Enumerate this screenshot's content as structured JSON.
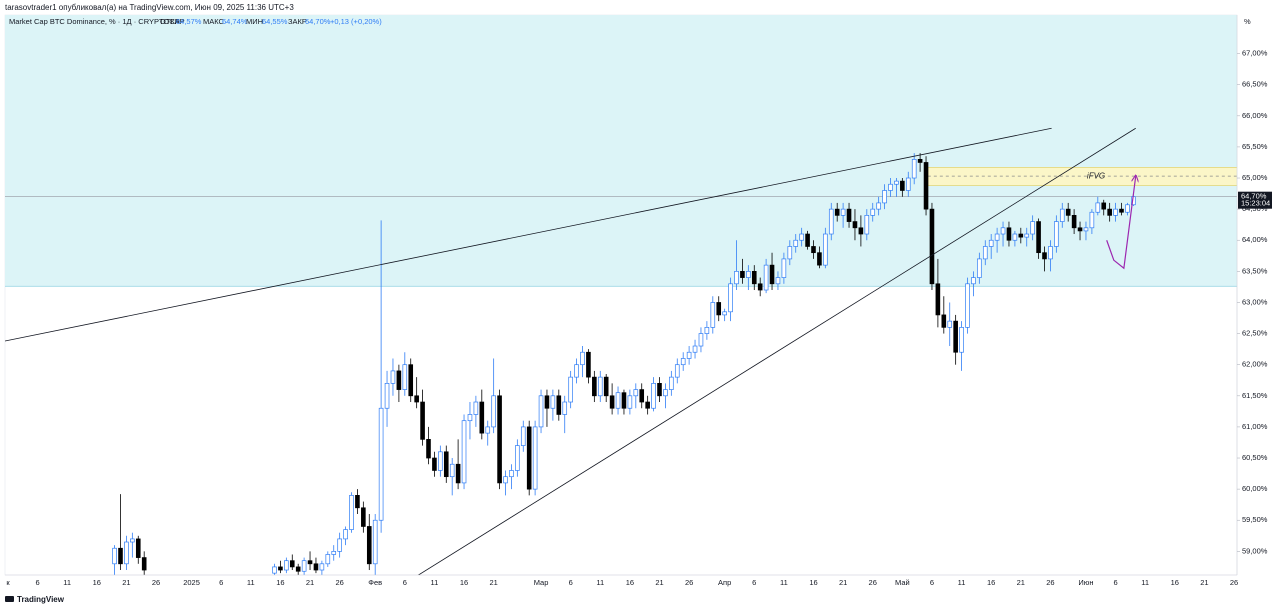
{
  "header": {
    "author_line": "tarasovtrader1 опубликовал(а) на TradingView.com, Июн 09, 2025 11:36 UTC+3",
    "brand": "TradingView"
  },
  "legend": {
    "symbol": "Market Cap BTC Dominance, % · 1Д · CRYPTOCAP",
    "open_label": "ОТКР",
    "open": "64,57%",
    "high_label": "МАКС",
    "high": "64,74%",
    "low_label": "МИН",
    "low": "64,55%",
    "close_label": "ЗАКР",
    "close": "64,70%",
    "change": "+0,13 (+0,20%)"
  },
  "chart_data": {
    "type": "candlestick",
    "axis_unit": "%",
    "up_color": "#2f7df6",
    "down_color": "#000000",
    "ylim": [
      58.62,
      67.62
    ],
    "yticks": [
      {
        "value": 59,
        "label": "59,00%"
      },
      {
        "value": 59.5,
        "label": "59,50%"
      },
      {
        "value": 60,
        "label": "60,00%"
      },
      {
        "value": 60.5,
        "label": "60,50%"
      },
      {
        "value": 61,
        "label": "61,00%"
      },
      {
        "value": 61.5,
        "label": "61,50%"
      },
      {
        "value": 62,
        "label": "62,00%"
      },
      {
        "value": 62.5,
        "label": "62,50%"
      },
      {
        "value": 63,
        "label": "63,00%"
      },
      {
        "value": 63.5,
        "label": "63,50%"
      },
      {
        "value": 64,
        "label": "64,00%"
      },
      {
        "value": 64.5,
        "label": "64,50%"
      },
      {
        "value": 65,
        "label": "65,00%"
      },
      {
        "value": 65.5,
        "label": "65,50%"
      },
      {
        "value": 66,
        "label": "66,00%"
      },
      {
        "value": 66.5,
        "label": "66,50%"
      },
      {
        "value": 67,
        "label": "67,00%"
      }
    ],
    "categories": [
      "к",
      null,
      null,
      null,
      null,
      "6",
      null,
      null,
      null,
      null,
      "11",
      null,
      null,
      null,
      null,
      "16",
      null,
      null,
      null,
      null,
      "21",
      null,
      null,
      null,
      null,
      "26",
      null,
      null,
      null,
      null,
      null,
      "2025",
      null,
      null,
      null,
      null,
      "6",
      null,
      null,
      null,
      null,
      "11",
      null,
      null,
      null,
      null,
      "16",
      null,
      null,
      null,
      null,
      "21",
      null,
      null,
      null,
      null,
      "26",
      null,
      null,
      null,
      null,
      null,
      "Фев",
      null,
      null,
      null,
      null,
      "6",
      null,
      null,
      null,
      null,
      "11",
      null,
      null,
      null,
      null,
      "16",
      null,
      null,
      null,
      null,
      "21",
      null,
      null,
      null,
      null,
      null,
      null,
      null,
      "Мар",
      null,
      null,
      null,
      null,
      "6",
      null,
      null,
      null,
      null,
      "11",
      null,
      null,
      null,
      null,
      "16",
      null,
      null,
      null,
      null,
      "21",
      null,
      null,
      null,
      null,
      "26",
      null,
      null,
      null,
      null,
      null,
      "Апр",
      null,
      null,
      null,
      null,
      "6",
      null,
      null,
      null,
      null,
      "11",
      null,
      null,
      null,
      null,
      "16",
      null,
      null,
      null,
      null,
      "21",
      null,
      null,
      null,
      null,
      "26",
      null,
      null,
      null,
      null,
      "Май",
      null,
      null,
      null,
      null,
      "6",
      null,
      null,
      null,
      null,
      "11",
      null,
      null,
      null,
      null,
      "16",
      null,
      null,
      null,
      null,
      "21",
      null,
      null,
      null,
      null,
      "26",
      null,
      null,
      null,
      null,
      null,
      "Июн",
      null,
      null,
      null,
      null,
      "6",
      null,
      null,
      null,
      null,
      "11",
      null,
      null,
      null,
      null,
      "16",
      null,
      null,
      null,
      null,
      "21",
      null,
      null,
      null,
      null,
      "26"
    ],
    "ohlc": [
      null,
      null,
      null,
      null,
      null,
      null,
      null,
      null,
      null,
      null,
      null,
      null,
      null,
      null,
      null,
      null,
      null,
      null,
      [
        58.8,
        59.1,
        58.62,
        59.05
      ],
      [
        59.05,
        59.92,
        58.7,
        58.8
      ],
      [
        58.8,
        59.25,
        58.7,
        59.15
      ],
      [
        59.15,
        59.3,
        58.9,
        59.2
      ],
      [
        59.2,
        59.25,
        58.8,
        58.9
      ],
      [
        58.9,
        59.0,
        58.62,
        58.7
      ],
      null,
      null,
      null,
      null,
      null,
      null,
      null,
      null,
      null,
      null,
      null,
      null,
      null,
      null,
      null,
      null,
      null,
      null,
      null,
      null,
      null,
      [
        58.65,
        58.8,
        58.62,
        58.75
      ],
      [
        58.75,
        58.85,
        58.65,
        58.7
      ],
      [
        58.7,
        58.9,
        58.65,
        58.85
      ],
      [
        58.85,
        58.95,
        58.7,
        58.75
      ],
      [
        58.75,
        58.8,
        58.62,
        58.68
      ],
      [
        58.68,
        58.9,
        58.62,
        58.85
      ],
      [
        58.85,
        59.0,
        58.7,
        58.8
      ],
      [
        58.8,
        58.9,
        58.65,
        58.7
      ],
      [
        58.7,
        58.85,
        58.62,
        58.8
      ],
      [
        58.8,
        59.0,
        58.75,
        58.95
      ],
      [
        58.95,
        59.1,
        58.85,
        59.0
      ],
      [
        59.0,
        59.3,
        58.9,
        59.2
      ],
      [
        59.2,
        59.4,
        59.1,
        59.35
      ],
      [
        59.35,
        59.95,
        59.3,
        59.9
      ],
      [
        59.9,
        60.0,
        59.6,
        59.7
      ],
      [
        59.7,
        59.8,
        59.3,
        59.4
      ],
      [
        59.4,
        59.6,
        58.7,
        58.8
      ],
      [
        58.8,
        59.6,
        58.62,
        59.5
      ],
      [
        59.5,
        64.32,
        59.3,
        61.3
      ],
      [
        61.3,
        61.9,
        61.0,
        61.7
      ],
      [
        61.7,
        62.1,
        61.5,
        61.9
      ],
      [
        61.9,
        62.0,
        61.4,
        61.6
      ],
      [
        61.6,
        62.2,
        61.5,
        62.0
      ],
      [
        62.0,
        62.1,
        61.4,
        61.5
      ],
      [
        61.5,
        61.8,
        61.3,
        61.4
      ],
      [
        61.4,
        61.6,
        60.7,
        60.8
      ],
      [
        60.8,
        61.0,
        60.4,
        60.5
      ],
      [
        60.5,
        60.6,
        60.2,
        60.3
      ],
      [
        60.3,
        60.7,
        60.2,
        60.6
      ],
      [
        60.6,
        60.7,
        60.1,
        60.2
      ],
      [
        60.2,
        60.5,
        59.9,
        60.4
      ],
      [
        60.4,
        60.8,
        60.0,
        60.1
      ],
      [
        60.1,
        61.2,
        60.0,
        61.1
      ],
      [
        61.1,
        61.4,
        60.8,
        61.2
      ],
      [
        61.2,
        61.5,
        61.0,
        61.4
      ],
      [
        61.4,
        61.6,
        60.8,
        60.9
      ],
      [
        60.9,
        61.1,
        60.7,
        61.0
      ],
      [
        61.0,
        62.1,
        60.9,
        61.5
      ],
      [
        61.5,
        61.6,
        60.0,
        60.1
      ],
      [
        60.1,
        60.3,
        59.9,
        60.2
      ],
      [
        60.2,
        60.4,
        60.0,
        60.3
      ],
      [
        60.3,
        60.8,
        60.2,
        60.7
      ],
      [
        60.7,
        61.1,
        60.6,
        61.0
      ],
      [
        61.0,
        61.1,
        59.9,
        60.0
      ],
      [
        60.0,
        61.1,
        59.9,
        61.0
      ],
      [
        61.0,
        61.6,
        60.9,
        61.5
      ],
      [
        61.5,
        61.6,
        61.0,
        61.3
      ],
      [
        61.3,
        61.6,
        61.1,
        61.5
      ],
      [
        61.5,
        61.6,
        61.1,
        61.2
      ],
      [
        61.2,
        61.5,
        60.9,
        61.4
      ],
      [
        61.4,
        61.9,
        61.3,
        61.8
      ],
      [
        61.8,
        62.1,
        61.7,
        62.0
      ],
      [
        62.0,
        62.3,
        61.8,
        62.2
      ],
      [
        62.2,
        62.25,
        61.7,
        61.8
      ],
      [
        61.8,
        61.9,
        61.4,
        61.5
      ],
      [
        61.5,
        61.9,
        61.4,
        61.8
      ],
      [
        61.8,
        61.85,
        61.4,
        61.5
      ],
      [
        61.5,
        61.7,
        61.2,
        61.3
      ],
      [
        61.3,
        61.65,
        61.2,
        61.55
      ],
      [
        61.55,
        61.6,
        61.2,
        61.3
      ],
      [
        61.3,
        61.6,
        61.2,
        61.5
      ],
      [
        61.5,
        61.7,
        61.3,
        61.6
      ],
      [
        61.6,
        61.7,
        61.3,
        61.4
      ],
      [
        61.4,
        61.5,
        61.2,
        61.3
      ],
      [
        61.3,
        61.8,
        61.25,
        61.7
      ],
      [
        61.7,
        61.8,
        61.4,
        61.5
      ],
      [
        61.5,
        61.7,
        61.3,
        61.6
      ],
      [
        61.6,
        61.9,
        61.5,
        61.8
      ],
      [
        61.8,
        62.1,
        61.7,
        62.0
      ],
      [
        62.0,
        62.2,
        61.9,
        62.1
      ],
      [
        62.1,
        62.3,
        62.0,
        62.2
      ],
      [
        62.2,
        62.4,
        62.1,
        62.3
      ],
      [
        62.3,
        62.6,
        62.2,
        62.5
      ],
      [
        62.5,
        62.7,
        62.4,
        62.6
      ],
      [
        62.6,
        63.1,
        62.5,
        63.0
      ],
      [
        63.0,
        63.1,
        62.7,
        62.8
      ],
      [
        62.8,
        62.9,
        62.7,
        62.85
      ],
      [
        62.85,
        63.4,
        62.7,
        63.3
      ],
      [
        63.3,
        64.0,
        63.2,
        63.5
      ],
      [
        63.5,
        63.7,
        63.3,
        63.4
      ],
      [
        63.4,
        63.6,
        63.2,
        63.5
      ],
      [
        63.5,
        63.6,
        63.2,
        63.3
      ],
      [
        63.3,
        63.4,
        63.1,
        63.2
      ],
      [
        63.2,
        63.7,
        63.15,
        63.6
      ],
      [
        63.6,
        63.8,
        63.2,
        63.3
      ],
      [
        63.3,
        63.5,
        63.2,
        63.4
      ],
      [
        63.4,
        63.8,
        63.3,
        63.7
      ],
      [
        63.7,
        64.0,
        63.6,
        63.9
      ],
      [
        63.9,
        64.1,
        63.8,
        64.0
      ],
      [
        64.0,
        64.2,
        63.9,
        64.1
      ],
      [
        64.1,
        64.15,
        63.85,
        63.9
      ],
      [
        63.9,
        64.0,
        63.7,
        63.8
      ],
      [
        63.8,
        63.9,
        63.55,
        63.6
      ],
      [
        63.6,
        64.2,
        63.55,
        64.1
      ],
      [
        64.1,
        64.6,
        64.0,
        64.5
      ],
      [
        64.5,
        64.6,
        64.3,
        64.4
      ],
      [
        64.4,
        64.6,
        64.2,
        64.5
      ],
      [
        64.5,
        64.6,
        64.2,
        64.3
      ],
      [
        64.3,
        64.5,
        64.0,
        64.2
      ],
      [
        64.2,
        64.4,
        63.9,
        64.1
      ],
      [
        64.1,
        64.5,
        64.0,
        64.4
      ],
      [
        64.4,
        64.6,
        64.3,
        64.5
      ],
      [
        64.5,
        64.7,
        64.4,
        64.6
      ],
      [
        64.6,
        64.9,
        64.5,
        64.8
      ],
      [
        64.8,
        65.0,
        64.7,
        64.9
      ],
      [
        64.9,
        65.0,
        64.7,
        64.95
      ],
      [
        64.95,
        65.0,
        64.7,
        64.8
      ],
      [
        64.8,
        65.1,
        64.7,
        65.0
      ],
      [
        65.0,
        65.4,
        64.9,
        65.3
      ],
      [
        65.3,
        65.4,
        65.1,
        65.25
      ],
      [
        65.25,
        65.35,
        64.4,
        64.5
      ],
      [
        64.5,
        64.6,
        63.2,
        63.3
      ],
      [
        63.3,
        63.7,
        62.6,
        62.8
      ],
      [
        62.8,
        63.1,
        62.5,
        62.6
      ],
      [
        62.6,
        63.0,
        62.3,
        62.7
      ],
      [
        62.7,
        62.8,
        62.0,
        62.2
      ],
      [
        62.2,
        62.7,
        61.9,
        62.6
      ],
      [
        62.6,
        63.4,
        62.5,
        63.3
      ],
      [
        63.3,
        63.5,
        63.1,
        63.4
      ],
      [
        63.4,
        63.8,
        63.3,
        63.7
      ],
      [
        63.7,
        64.0,
        63.6,
        63.9
      ],
      [
        63.9,
        64.1,
        63.7,
        64.0
      ],
      [
        64.0,
        64.2,
        63.8,
        64.1
      ],
      [
        64.1,
        64.3,
        63.9,
        64.2
      ],
      [
        64.2,
        64.3,
        63.9,
        64.0
      ],
      [
        64.0,
        64.15,
        63.9,
        64.1
      ],
      [
        64.1,
        64.2,
        63.95,
        64.05
      ],
      [
        64.05,
        64.2,
        63.9,
        64.1
      ],
      [
        64.1,
        64.4,
        64.0,
        64.3
      ],
      [
        64.3,
        64.35,
        63.7,
        63.8
      ],
      [
        63.8,
        63.9,
        63.5,
        63.7
      ],
      [
        63.7,
        64.0,
        63.5,
        63.9
      ],
      [
        63.9,
        64.4,
        63.8,
        64.3
      ],
      [
        64.3,
        64.6,
        64.2,
        64.5
      ],
      [
        64.5,
        64.6,
        64.3,
        64.4
      ],
      [
        64.4,
        64.5,
        64.1,
        64.2
      ],
      [
        64.2,
        64.3,
        64.0,
        64.15
      ],
      [
        64.15,
        64.3,
        64.0,
        64.2
      ],
      [
        64.2,
        64.5,
        64.1,
        64.45
      ],
      [
        64.45,
        64.7,
        64.4,
        64.6
      ],
      [
        64.6,
        64.65,
        64.4,
        64.5
      ],
      [
        64.5,
        64.6,
        64.3,
        64.4
      ],
      [
        64.4,
        64.6,
        64.3,
        64.5
      ],
      [
        64.5,
        64.6,
        64.4,
        64.45
      ],
      [
        64.45,
        64.6,
        64.4,
        64.57
      ],
      [
        64.57,
        64.74,
        64.55,
        64.7
      ],
      null,
      null,
      null,
      null,
      null,
      null,
      null,
      null,
      null,
      null,
      null,
      null,
      null,
      null,
      null,
      null,
      null
    ],
    "zone": {
      "from": 63.26,
      "to": 67.62,
      "color": "#dcf4f7",
      "edge": "#9fd8e6"
    },
    "fvg": {
      "label": "iFVG",
      "x": [
        155.3,
        207.9
      ],
      "y": [
        64.88,
        65.17
      ],
      "mid": 65.03,
      "color": "#fbf6c8",
      "edge": "#e3d77a"
    },
    "drawings": [
      {
        "color": "#131722",
        "x": [
          -0.5,
          176.2
        ],
        "y": [
          62.38,
          65.8
        ]
      },
      {
        "color": "#131722",
        "x": [
          68.8,
          190.4
        ],
        "y": [
          58.59,
          65.8
        ]
      },
      {
        "color": "#9c27b0",
        "x": [
          185.5,
          186.7,
          188.4,
          190.4
        ],
        "y": [
          64.0,
          63.68,
          63.55,
          65.03
        ]
      }
    ],
    "last_price": {
      "value": 64.7,
      "label": "64,70%"
    },
    "countdown": "15:23:04"
  }
}
